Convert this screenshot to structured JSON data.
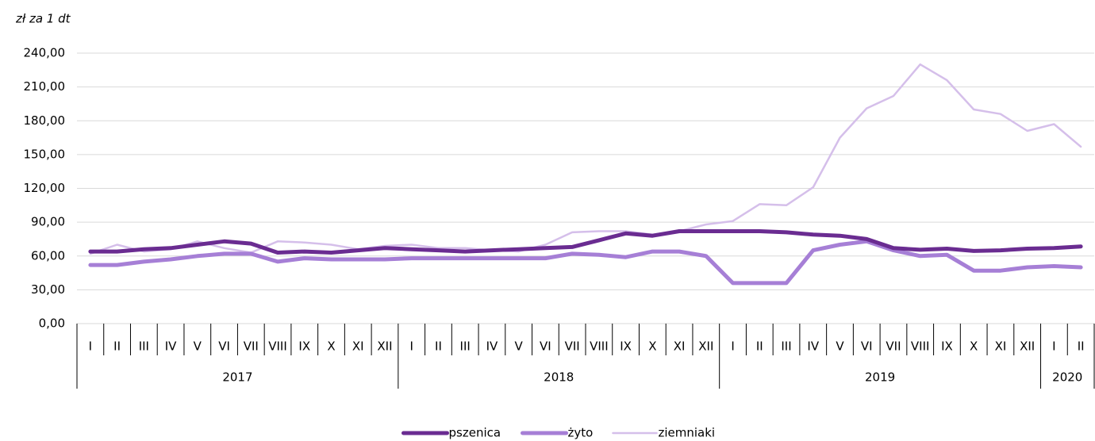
{
  "chart_data": {
    "type": "line",
    "y_label": "zł za 1 dt",
    "groups": [
      {
        "label": "2017",
        "categories": [
          "I",
          "II",
          "III",
          "IV",
          "V",
          "VI",
          "VII",
          "VIII",
          "IX",
          "X",
          "XI",
          "XII"
        ]
      },
      {
        "label": "2018",
        "categories": [
          "I",
          "II",
          "III",
          "IV",
          "V",
          "VI",
          "VII",
          "VIII",
          "IX",
          "X",
          "XI",
          "XII"
        ]
      },
      {
        "label": "2019",
        "categories": [
          "I",
          "II",
          "III",
          "IV",
          "V",
          "VI",
          "VII",
          "VIII",
          "IX",
          "X",
          "XI",
          "XII"
        ]
      },
      {
        "label": "2020",
        "categories": [
          "I",
          "II"
        ]
      }
    ],
    "series": [
      {
        "name": "pszenica",
        "color": "#6a2c91",
        "values": [
          64,
          64,
          66,
          67,
          70,
          73,
          71,
          63,
          64,
          63,
          65,
          67,
          66,
          65,
          64,
          65,
          66,
          67,
          68,
          74,
          80,
          78,
          82,
          82,
          82,
          82,
          81,
          79,
          78,
          75,
          67,
          65.5,
          66.5,
          64.5,
          65,
          66.5,
          67,
          68.5
        ]
      },
      {
        "name": "żyto",
        "color": "#a67fd6",
        "values": [
          52,
          52,
          55,
          57,
          60,
          62,
          62,
          55,
          58,
          57,
          57,
          57,
          58,
          58,
          58,
          58,
          58,
          58,
          62,
          61,
          59,
          64,
          64,
          60,
          36,
          36,
          36,
          65,
          70,
          73,
          65,
          60,
          61,
          47,
          47,
          50,
          51,
          50
        ]
      },
      {
        "name": "ziemniaki",
        "color": "#d5bfea",
        "values": [
          62,
          70,
          64,
          66,
          73,
          67,
          63,
          73,
          72,
          70,
          66,
          69,
          70,
          67,
          67,
          65,
          64,
          70,
          81,
          82,
          82,
          79,
          82,
          88,
          91,
          106,
          105,
          121,
          165,
          191,
          202,
          230,
          216,
          190,
          186,
          171,
          177,
          157
        ]
      }
    ],
    "ylim": [
      0,
      240
    ],
    "yticks": [
      {
        "value": 0,
        "label": "0,00"
      },
      {
        "value": 30,
        "label": "30,00"
      },
      {
        "value": 60,
        "label": "60,00"
      },
      {
        "value": 90,
        "label": "90,00"
      },
      {
        "value": 120,
        "label": "120,00"
      },
      {
        "value": 150,
        "label": "150,00"
      },
      {
        "value": 180,
        "label": "180,00"
      },
      {
        "value": 210,
        "label": "210,00"
      },
      {
        "value": 240,
        "label": "240,00"
      }
    ],
    "grid": true,
    "legend": "bottom"
  }
}
